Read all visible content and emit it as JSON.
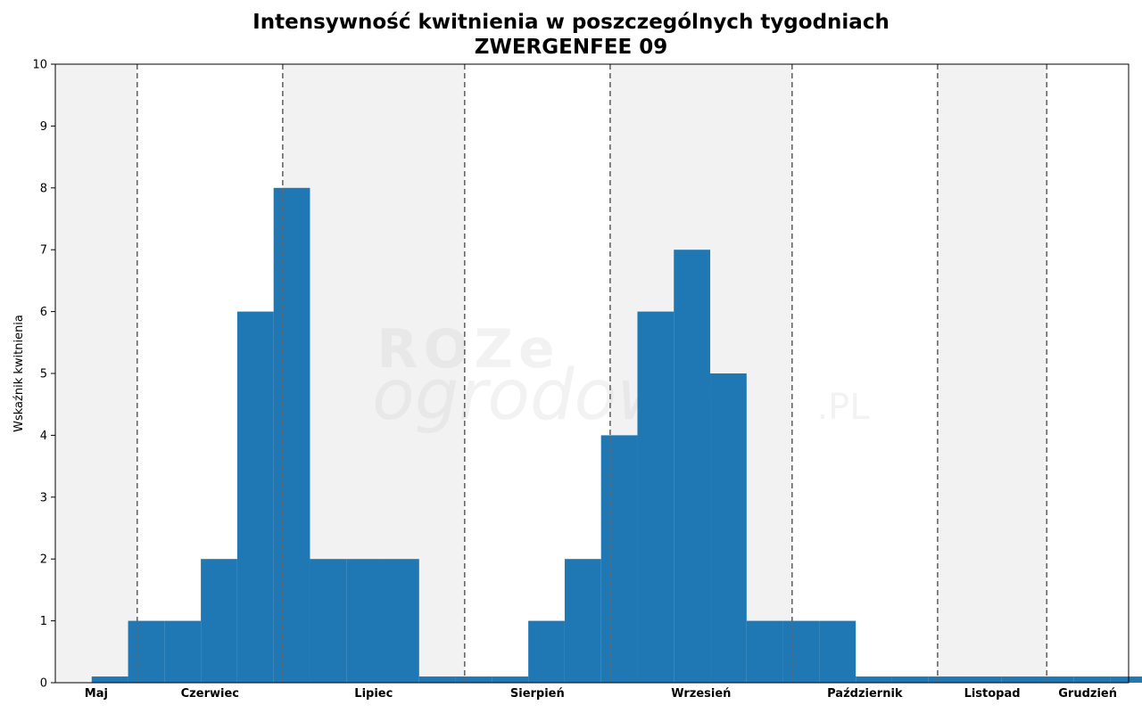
{
  "chart_data": {
    "type": "bar",
    "title": "Intensywność kwitnienia w poszczególnych tygodniach",
    "subtitle": "ZWERGENFEE 09",
    "ylabel": "Wskaźnik kwitnienia",
    "xlabel": "",
    "ylim": [
      0,
      10
    ],
    "y_ticks": [
      0,
      1,
      2,
      3,
      4,
      5,
      6,
      7,
      8,
      9,
      10
    ],
    "grid": false,
    "bar_color": "#1f77b4",
    "band_color": "#f2f2f2",
    "divider_color": "#666666",
    "watermark": "ROZE ogrodowe .PL",
    "weeks_start_index": 0,
    "values": [
      0,
      0.1,
      1,
      1,
      2,
      6,
      8,
      2,
      2,
      2,
      0.1,
      0.1,
      0.1,
      1,
      2,
      4,
      6,
      7,
      5,
      1,
      1,
      1,
      0.1,
      0.1,
      0.1,
      0.1,
      0.1,
      0.1,
      0.1,
      0.1
    ],
    "months": [
      {
        "label": "Maj",
        "start_week": 0,
        "end_week": 2.25,
        "shaded": true
      },
      {
        "label": "Czerwiec",
        "start_week": 2.25,
        "end_week": 6.25,
        "shaded": false
      },
      {
        "label": "Lipiec",
        "start_week": 6.25,
        "end_week": 11.25,
        "shaded": true
      },
      {
        "label": "Sierpień",
        "start_week": 11.25,
        "end_week": 15.25,
        "shaded": false
      },
      {
        "label": "Wrzesień",
        "start_week": 15.25,
        "end_week": 20.25,
        "shaded": true
      },
      {
        "label": "Październik",
        "start_week": 20.25,
        "end_week": 24.25,
        "shaded": false
      },
      {
        "label": "Listopad",
        "start_week": 24.25,
        "end_week": 27.25,
        "shaded": true
      },
      {
        "label": "Grudzień",
        "start_week": 27.25,
        "end_week": 29.5,
        "shaded": false
      }
    ],
    "x_range": [
      0,
      29.5
    ]
  }
}
